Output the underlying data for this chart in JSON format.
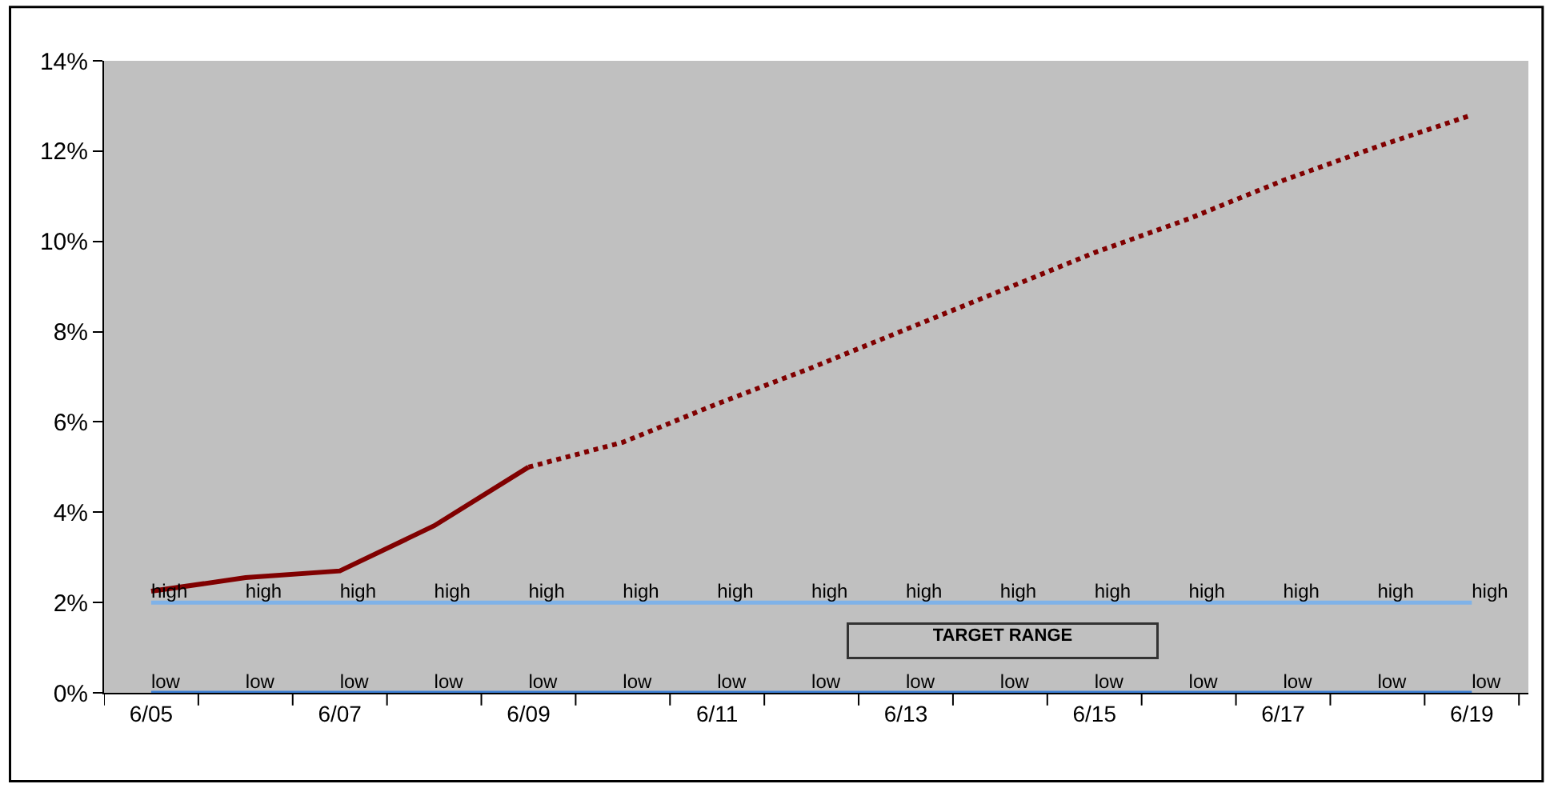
{
  "chart_data": {
    "type": "line",
    "categories": [
      "6/05",
      null,
      "6/07",
      null,
      "6/09",
      null,
      "6/11",
      null,
      "6/13",
      null,
      "6/15",
      null,
      "6/17",
      null,
      "6/19"
    ],
    "series": [
      {
        "color": "#800000",
        "line_style": "solid",
        "values": [
          2.25,
          2.55,
          2.7,
          3.7,
          5.0,
          null,
          null,
          null,
          null,
          null,
          null,
          null,
          null,
          null,
          null
        ]
      },
      {
        "color": "#800000",
        "line_style": "dotted",
        "values": [
          null,
          null,
          null,
          null,
          5.0,
          5.55,
          6.4,
          7.2,
          8.05,
          8.9,
          9.75,
          10.5,
          11.35,
          12.1,
          12.8
        ]
      },
      {
        "color": "#7fb2e8",
        "line_style": "solid",
        "values": [
          2,
          2,
          2,
          2,
          2,
          2,
          2,
          2,
          2,
          2,
          2,
          2,
          2,
          2,
          2
        ],
        "value_labels": [
          "high",
          "high",
          "high",
          "high",
          "high",
          "high",
          "high",
          "high",
          "high",
          "high",
          "high",
          "high",
          "high",
          "high",
          "high"
        ]
      },
      {
        "color": "#3c7fd4",
        "line_style": "solid",
        "values": [
          0,
          0,
          0,
          0,
          0,
          0,
          0,
          0,
          0,
          0,
          0,
          0,
          0,
          0,
          0
        ],
        "value_labels": [
          "low",
          "low",
          "low",
          "low",
          "low",
          "low",
          "low",
          "low",
          "low",
          "low",
          "low",
          "low",
          "low",
          "low",
          "low"
        ]
      }
    ],
    "ylim": [
      0,
      14
    ],
    "yticks": [
      {
        "value": 0,
        "label": "0%"
      },
      {
        "value": 2,
        "label": "2%"
      },
      {
        "value": 4,
        "label": "4%"
      },
      {
        "value": 6,
        "label": "6%"
      },
      {
        "value": 8,
        "label": "8%"
      },
      {
        "value": 10,
        "label": "10%"
      },
      {
        "value": 12,
        "label": "12%"
      },
      {
        "value": 14,
        "label": "14%"
      }
    ],
    "grid": false,
    "marker": "none",
    "annotations": [
      "TARGET RANGE"
    ]
  }
}
